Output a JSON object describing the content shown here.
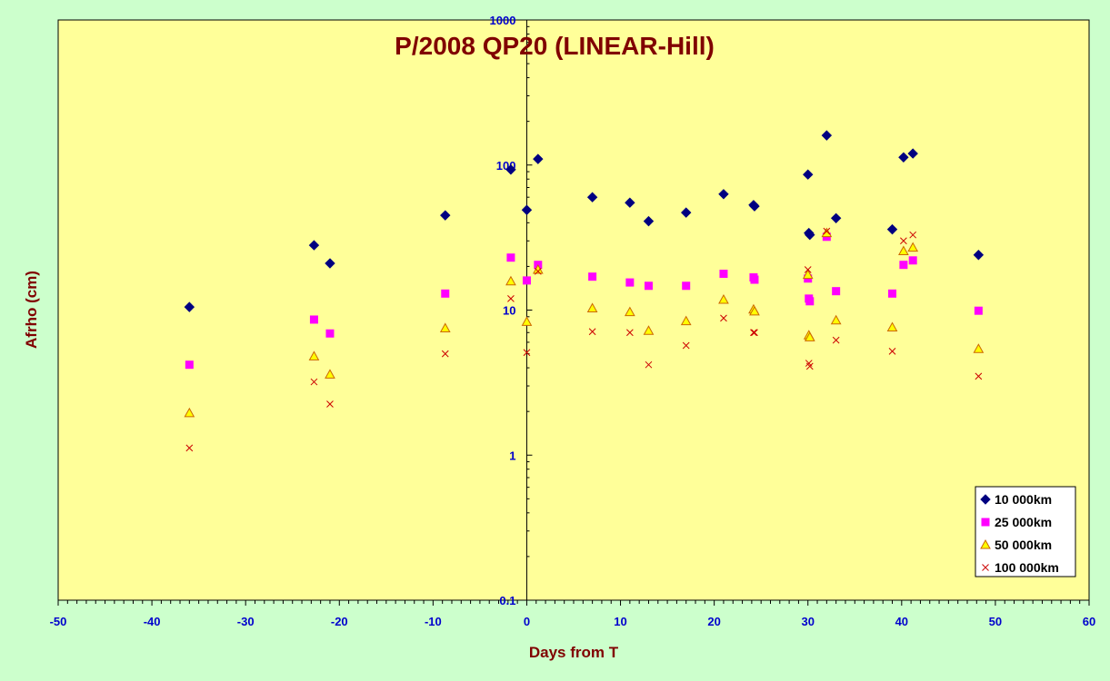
{
  "chart_data": {
    "type": "scatter",
    "title": "P/2008 QP20 (LINEAR-Hill)",
    "xlabel": "Days from T",
    "ylabel": "Afrho (cm)",
    "xlim": [
      -50,
      60
    ],
    "ylim": [
      0.1,
      1000
    ],
    "y_scale": "log",
    "x_ticks": [
      -50,
      -40,
      -30,
      -20,
      -10,
      0,
      10,
      20,
      30,
      40,
      50,
      60
    ],
    "y_ticks": [
      0.1,
      1,
      10,
      100,
      1000
    ],
    "x_tick_labels": [
      "-50",
      "-40",
      "-30",
      "-20",
      "-10",
      "0",
      "10",
      "20",
      "30",
      "40",
      "50",
      "60"
    ],
    "y_tick_labels": [
      "0.1",
      "1",
      "10",
      "100",
      "1000"
    ],
    "grid": false,
    "legend_position": "bottom-right",
    "plot_background": "#ffff99",
    "page_background": "#ccffcc",
    "series": [
      {
        "name": "10 000km",
        "marker": "diamond",
        "color": "#000080",
        "points": [
          [
            -36,
            10.5
          ],
          [
            -22.7,
            28
          ],
          [
            -21,
            21
          ],
          [
            -8.7,
            45
          ],
          [
            -1.7,
            93
          ],
          [
            0,
            49
          ],
          [
            1.2,
            110
          ],
          [
            7,
            60
          ],
          [
            11,
            55
          ],
          [
            13,
            41
          ],
          [
            17,
            47
          ],
          [
            21,
            63
          ],
          [
            24.2,
            53
          ],
          [
            24.3,
            52
          ],
          [
            30,
            86
          ],
          [
            30.1,
            34
          ],
          [
            30.2,
            33
          ],
          [
            32,
            160
          ],
          [
            33,
            43
          ],
          [
            39,
            36
          ],
          [
            40.2,
            113
          ],
          [
            41.2,
            120
          ],
          [
            48.2,
            24
          ]
        ]
      },
      {
        "name": "25 000km",
        "marker": "square",
        "color": "#ff00ff",
        "points": [
          [
            -36,
            4.2
          ],
          [
            -22.7,
            8.6
          ],
          [
            -21,
            6.9
          ],
          [
            -8.7,
            13
          ],
          [
            -1.7,
            23
          ],
          [
            0,
            16
          ],
          [
            1.2,
            20.5
          ],
          [
            7,
            17
          ],
          [
            11,
            15.5
          ],
          [
            13,
            14.7
          ],
          [
            17,
            14.7
          ],
          [
            21,
            17.8
          ],
          [
            24.2,
            16.8
          ],
          [
            24.3,
            16.2
          ],
          [
            30,
            16.5
          ],
          [
            30.1,
            12
          ],
          [
            30.2,
            11.5
          ],
          [
            32,
            32
          ],
          [
            33,
            13.5
          ],
          [
            39,
            13
          ],
          [
            40.2,
            20.5
          ],
          [
            41.2,
            22
          ],
          [
            48.2,
            9.9
          ]
        ]
      },
      {
        "name": "50 000km",
        "marker": "triangle",
        "color": "#cc6600",
        "fill": "#ffff00",
        "points": [
          [
            -36,
            1.95
          ],
          [
            -22.7,
            4.8
          ],
          [
            -21,
            3.6
          ],
          [
            -8.7,
            7.5
          ],
          [
            -1.7,
            15.8
          ],
          [
            0,
            8.3
          ],
          [
            1.2,
            19
          ],
          [
            7,
            10.3
          ],
          [
            11,
            9.7
          ],
          [
            13,
            7.2
          ],
          [
            17,
            8.4
          ],
          [
            21,
            11.8
          ],
          [
            24.2,
            10.1
          ],
          [
            24.3,
            9.8
          ],
          [
            30,
            17.5
          ],
          [
            30.1,
            6.7
          ],
          [
            30.2,
            6.5
          ],
          [
            32,
            34
          ],
          [
            33,
            8.5
          ],
          [
            39,
            7.6
          ],
          [
            40.2,
            25.5
          ],
          [
            41.2,
            27
          ],
          [
            48.2,
            5.4
          ]
        ]
      },
      {
        "name": "100 000km",
        "marker": "x",
        "color": "#cc0000",
        "points": [
          [
            -36,
            1.12
          ],
          [
            -22.7,
            3.2
          ],
          [
            -21,
            2.25
          ],
          [
            -8.7,
            5
          ],
          [
            -1.7,
            12
          ],
          [
            0,
            5.1
          ],
          [
            1.2,
            18.5
          ],
          [
            7,
            7.1
          ],
          [
            11,
            7
          ],
          [
            13,
            4.2
          ],
          [
            17,
            5.7
          ],
          [
            21,
            8.8
          ],
          [
            24.2,
            7
          ],
          [
            24.3,
            7
          ],
          [
            30,
            19
          ],
          [
            30.1,
            4.3
          ],
          [
            30.2,
            4.1
          ],
          [
            32,
            35
          ],
          [
            33,
            6.2
          ],
          [
            39,
            5.2
          ],
          [
            40.2,
            30
          ],
          [
            41.2,
            33
          ],
          [
            48.2,
            3.5
          ]
        ]
      }
    ]
  }
}
